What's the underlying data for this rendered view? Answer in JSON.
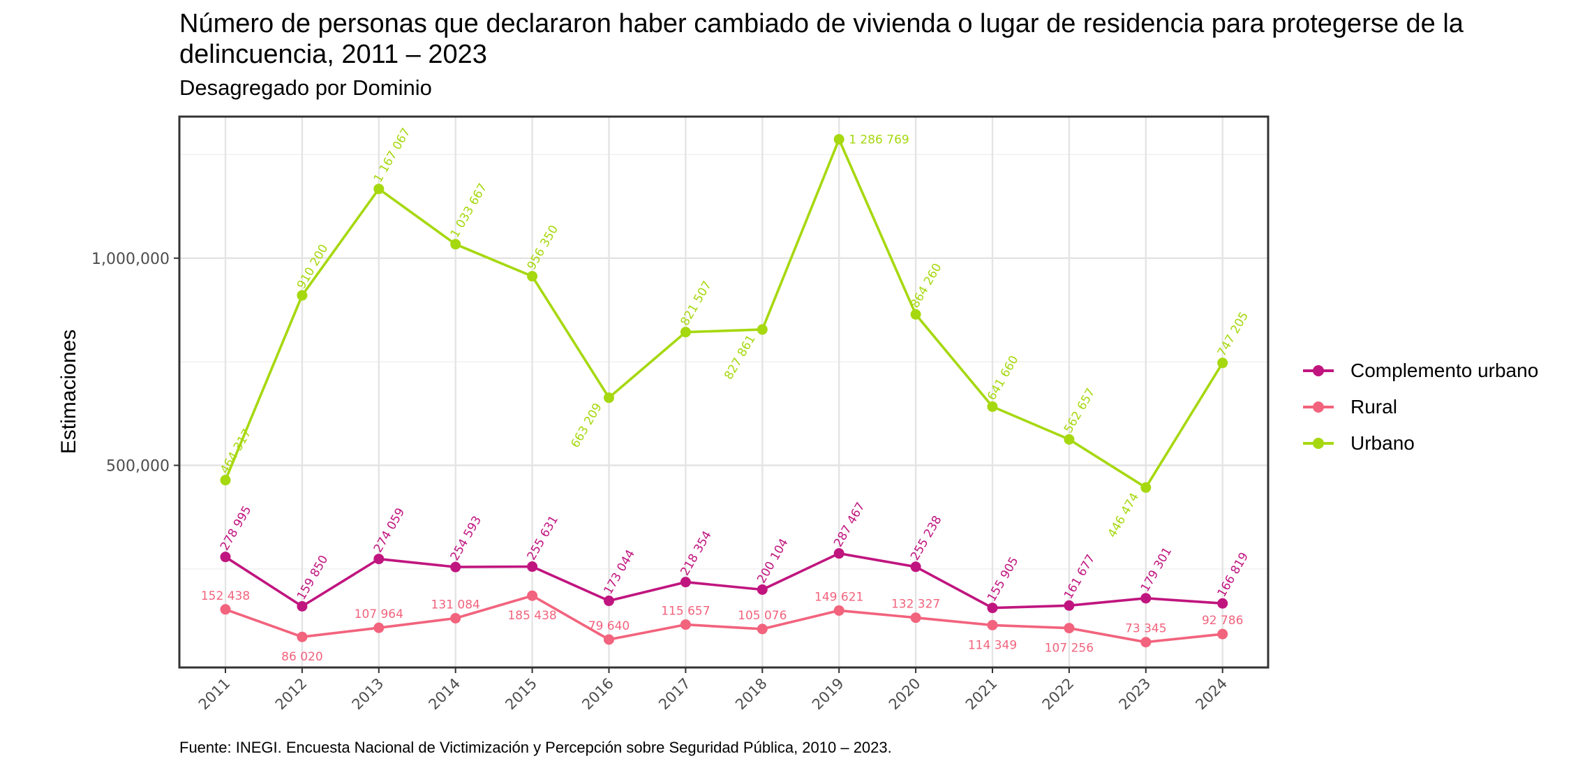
{
  "title": "Número de personas que declararon haber cambiado de vivienda o lugar de residencia para protegerse de la delincuencia, 2011 – 2023",
  "subtitle": "Desagregado por Dominio",
  "caption": "Fuente: INEGI. Encuesta Nacional de Victimización y Percepción sobre Seguridad Pública, 2010 – 2023.",
  "chart_data": {
    "type": "line",
    "title": "Número de personas que declararon haber cambiado de vivienda o lugar de residencia para protegerse de la delincuencia, 2011 – 2023",
    "subtitle": "Desagregado por Dominio",
    "xlabel": "",
    "ylabel": "Estimaciones",
    "x": [
      "2011",
      "2012",
      "2013",
      "2014",
      "2015",
      "2016",
      "2017",
      "2018",
      "2019",
      "2020",
      "2021",
      "2022",
      "2023",
      "2024"
    ],
    "y_ticks": [
      500000,
      1000000
    ],
    "y_tick_labels": [
      "500,000",
      "1,000,000"
    ],
    "ylim": [
      0,
      1300000
    ],
    "grid": true,
    "legend_position": "right",
    "series": [
      {
        "name": "Complemento urbano",
        "color": "#c0157f",
        "values": [
          278995,
          159850,
          274059,
          254593,
          255631,
          173044,
          218354,
          200104,
          287467,
          255238,
          155905,
          161677,
          179301,
          166819
        ],
        "labels": [
          "278 995",
          "159 850",
          "274 059",
          "254 593",
          "255 631",
          "173 044",
          "218 354",
          "200 104",
          "287 467",
          "255 238",
          "155 905",
          "161 677",
          "179 301",
          "166 819"
        ]
      },
      {
        "name": "Rural",
        "color": "#f2637d",
        "values": [
          152438,
          86020,
          107964,
          131084,
          185438,
          79640,
          115657,
          105076,
          149621,
          132327,
          114349,
          107256,
          73345,
          92786
        ],
        "labels": [
          "152 438",
          "86 020",
          "107 964",
          "131 084",
          "185 438",
          "79 640",
          "115 657",
          "105 076",
          "149 621",
          "132 327",
          "114 349",
          "107 256",
          "73 345",
          "92 786"
        ]
      },
      {
        "name": "Urbano",
        "color": "#a6d80f",
        "values": [
          464317,
          910200,
          1167067,
          1033667,
          956350,
          663209,
          821507,
          827861,
          1286769,
          864260,
          641660,
          562657,
          446474,
          747205
        ],
        "labels": [
          "464 317",
          "910 200",
          "1 167 067",
          "1 033 667",
          "956 350",
          "663 209",
          "821 507",
          "827 861",
          "1 286 769",
          "864 260",
          "641 660",
          "562 657",
          "446 474",
          "747 205"
        ]
      }
    ]
  }
}
